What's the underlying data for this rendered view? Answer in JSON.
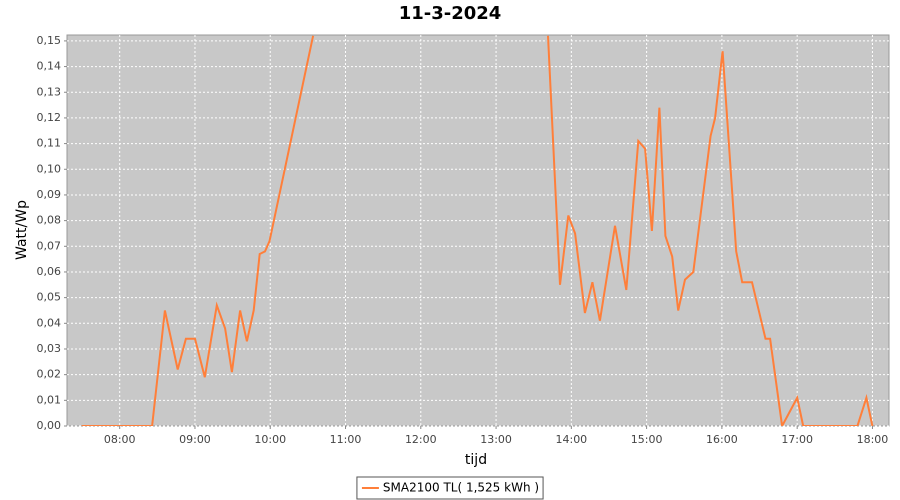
{
  "chart_data": {
    "type": "line",
    "title": "11-3-2024",
    "xlabel": "tijd",
    "ylabel": "Watt/Wp",
    "x": [
      7.495,
      8.33,
      8.43,
      8.6,
      8.77,
      8.88,
      9.0,
      9.13,
      9.29,
      9.4,
      9.49,
      9.6,
      9.69,
      9.78,
      9.86,
      9.93,
      9.99,
      10.57,
      null,
      13.69,
      13.85,
      13.96,
      14.05,
      14.18,
      14.28,
      14.38,
      14.58,
      14.73,
      14.89,
      14.98,
      15.07,
      15.17,
      15.25,
      15.34,
      15.42,
      15.51,
      15.62,
      15.85,
      15.91,
      16.01,
      16.19,
      16.27,
      16.4,
      16.58,
      16.64,
      16.8,
      17.0,
      17.08,
      17.8,
      17.92,
      18.0
    ],
    "series": [
      {
        "name": "SMA2100 TL( 1,525 kWh )",
        "color": "#ff7f3a",
        "values": [
          0,
          0,
          0,
          0.045,
          0.022,
          0.034,
          0.034,
          0.019,
          0.047,
          0.038,
          0.021,
          0.045,
          0.033,
          0.045,
          0.067,
          0.068,
          0.072,
          0.152,
          null,
          0.152,
          0.055,
          0.082,
          0.075,
          0.044,
          0.056,
          0.041,
          0.078,
          0.053,
          0.111,
          0.108,
          0.076,
          0.124,
          0.074,
          0.066,
          0.045,
          0.057,
          0.06,
          0.113,
          0.12,
          0.146,
          0.068,
          0.056,
          0.056,
          0.034,
          0.034,
          0,
          0.011,
          0,
          0,
          0.011,
          0
        ]
      }
    ],
    "xlim": [
      7.3,
      18.22
    ],
    "xticks": [
      {
        "value": 8,
        "label": "08:00"
      },
      {
        "value": 9,
        "label": "09:00"
      },
      {
        "value": 10,
        "label": "10:00"
      },
      {
        "value": 11,
        "label": "11:00"
      },
      {
        "value": 12,
        "label": "12:00"
      },
      {
        "value": 13,
        "label": "13:00"
      },
      {
        "value": 14,
        "label": "14:00"
      },
      {
        "value": 15,
        "label": "15:00"
      },
      {
        "value": 16,
        "label": "16:00"
      },
      {
        "value": 17,
        "label": "17:00"
      },
      {
        "value": 18,
        "label": "18:00"
      }
    ],
    "ylim": [
      0,
      0.1523
    ],
    "yticks": [
      {
        "value": 0,
        "label": "0,00"
      },
      {
        "value": 0.01,
        "label": "0,01"
      },
      {
        "value": 0.02,
        "label": "0,02"
      },
      {
        "value": 0.03,
        "label": "0,03"
      },
      {
        "value": 0.04,
        "label": "0,04"
      },
      {
        "value": 0.05,
        "label": "0,05"
      },
      {
        "value": 0.06,
        "label": "0,06"
      },
      {
        "value": 0.07,
        "label": "0,07"
      },
      {
        "value": 0.08,
        "label": "0,08"
      },
      {
        "value": 0.09,
        "label": "0,09"
      },
      {
        "value": 0.1,
        "label": "0,10"
      },
      {
        "value": 0.11,
        "label": "0,11"
      },
      {
        "value": 0.12,
        "label": "0,12"
      },
      {
        "value": 0.13,
        "label": "0,13"
      },
      {
        "value": 0.14,
        "label": "0,14"
      },
      {
        "value": 0.15,
        "label": "0,15"
      }
    ],
    "grid": true
  }
}
